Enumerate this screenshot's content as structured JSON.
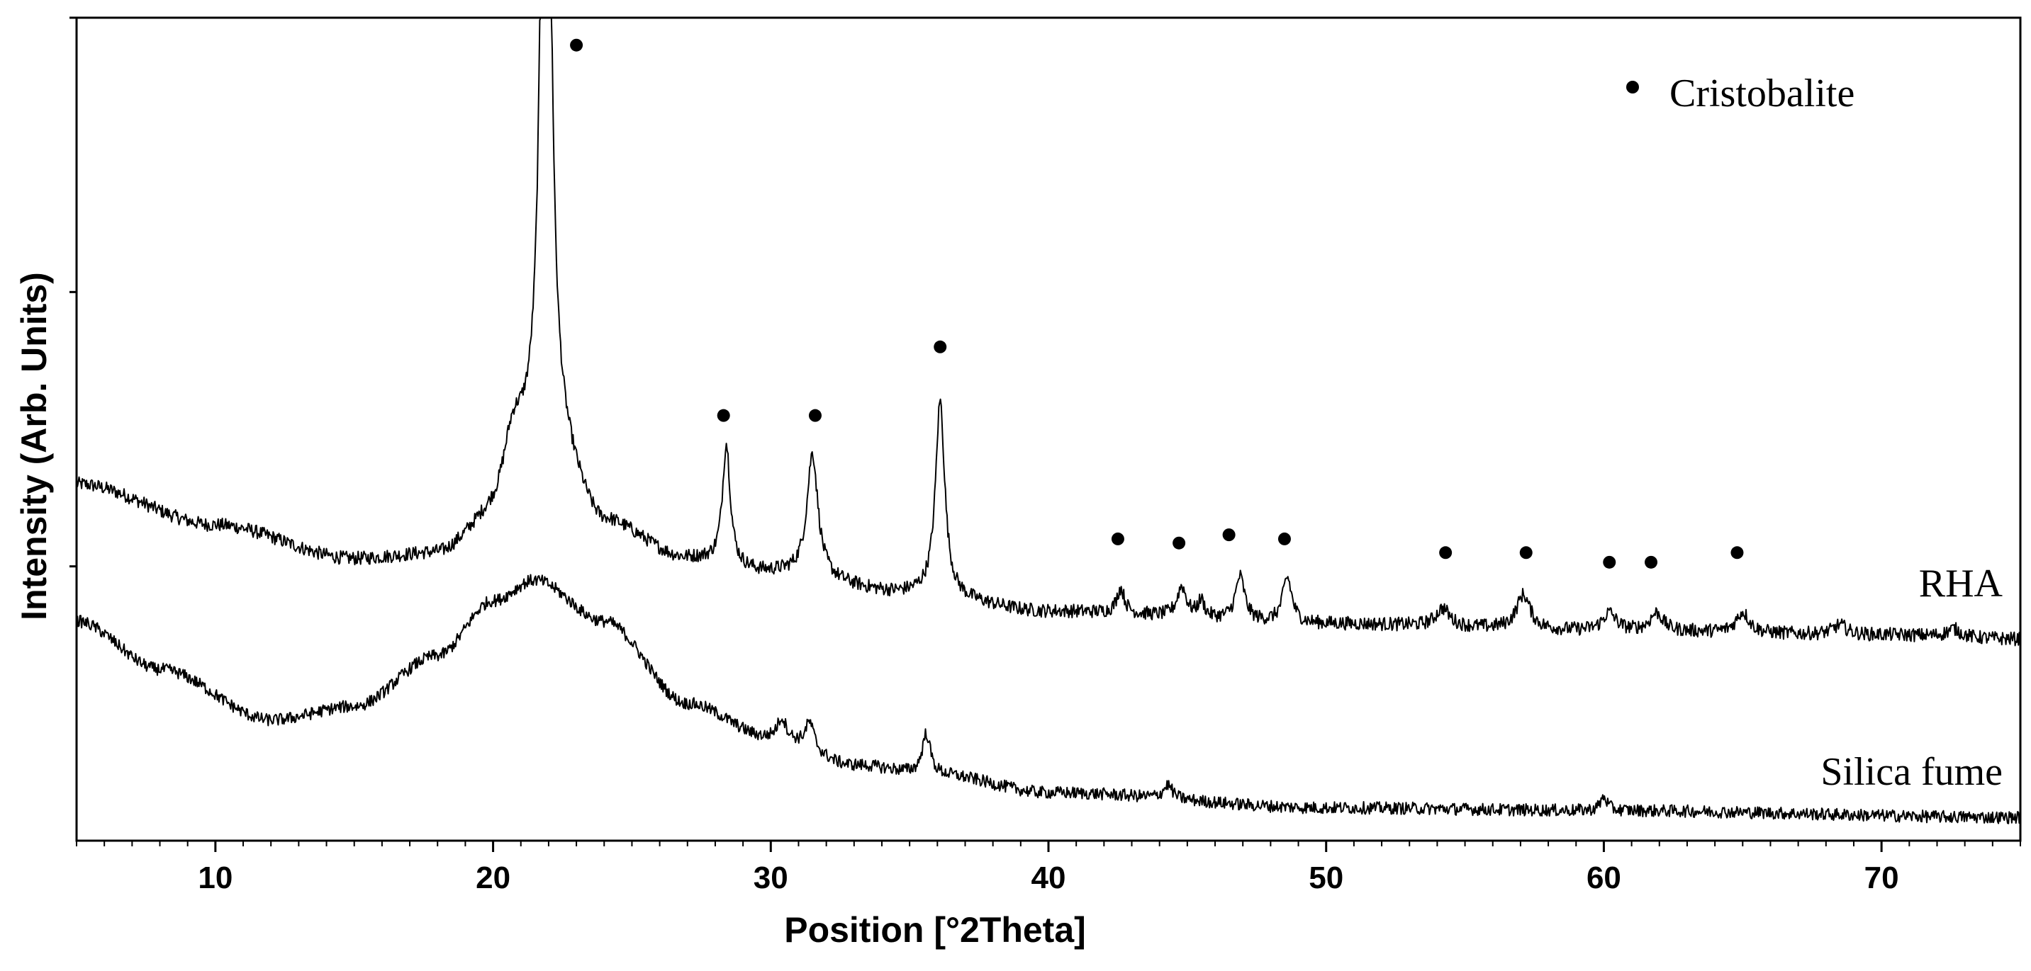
{
  "chart_data": {
    "type": "line",
    "xlabel": "Position [°2Theta]",
    "ylabel": "Intensity (Arb. Units)",
    "xlim": [
      5,
      75
    ],
    "x_ticks": [
      10,
      20,
      30,
      40,
      50,
      60,
      70
    ],
    "y_ticks_labeled": false,
    "ylim": [
      0,
      6
    ],
    "grid": false,
    "series": [
      {
        "name": "RHA",
        "baseline": [
          [
            5,
            2.6
          ],
          [
            10,
            2.3
          ],
          [
            15,
            2.05
          ],
          [
            18,
            2.08
          ],
          [
            20,
            2.3
          ],
          [
            22,
            2.9
          ],
          [
            24,
            2.3
          ],
          [
            27,
            2.05
          ],
          [
            30,
            1.95
          ],
          [
            35,
            1.8
          ],
          [
            40,
            1.67
          ],
          [
            50,
            1.58
          ],
          [
            60,
            1.53
          ],
          [
            70,
            1.5
          ],
          [
            75,
            1.47
          ]
        ],
        "peaks": [
          {
            "x": 20.7,
            "h": 0.5,
            "w": 0.5
          },
          {
            "x": 21.9,
            "h": 8.0,
            "w": 0.17
          },
          {
            "x": 28.4,
            "h": 0.88,
            "w": 0.17
          },
          {
            "x": 31.5,
            "h": 0.9,
            "w": 0.24
          },
          {
            "x": 36.1,
            "h": 1.42,
            "w": 0.2
          },
          {
            "x": 42.6,
            "h": 0.18,
            "w": 0.17
          },
          {
            "x": 44.8,
            "h": 0.22,
            "w": 0.2
          },
          {
            "x": 45.5,
            "h": 0.12,
            "w": 0.15
          },
          {
            "x": 46.9,
            "h": 0.32,
            "w": 0.2
          },
          {
            "x": 48.6,
            "h": 0.33,
            "w": 0.2
          },
          {
            "x": 54.2,
            "h": 0.13,
            "w": 0.3
          },
          {
            "x": 57.1,
            "h": 0.25,
            "w": 0.3
          },
          {
            "x": 60.2,
            "h": 0.13,
            "w": 0.28
          },
          {
            "x": 61.9,
            "h": 0.13,
            "w": 0.28
          },
          {
            "x": 65.0,
            "h": 0.15,
            "w": 0.28
          },
          {
            "x": 68.5,
            "h": 0.07,
            "w": 0.3
          },
          {
            "x": 72.6,
            "h": 0.06,
            "w": 0.3
          }
        ],
        "noise": 0.05
      },
      {
        "name": "Silica fume",
        "baseline": [
          [
            5,
            1.6
          ],
          [
            8,
            1.25
          ],
          [
            12,
            0.88
          ],
          [
            15,
            0.98
          ],
          [
            18,
            1.35
          ],
          [
            20,
            1.75
          ],
          [
            21.5,
            1.9
          ],
          [
            24,
            1.6
          ],
          [
            27,
            1.0
          ],
          [
            30,
            0.75
          ],
          [
            33,
            0.55
          ],
          [
            36,
            0.48
          ],
          [
            40,
            0.35
          ],
          [
            50,
            0.24
          ],
          [
            60,
            0.22
          ],
          [
            75,
            0.17
          ]
        ],
        "peaks": [
          {
            "x": 30.4,
            "h": 0.15,
            "w": 0.2
          },
          {
            "x": 31.4,
            "h": 0.2,
            "w": 0.2
          },
          {
            "x": 35.6,
            "h": 0.3,
            "w": 0.18
          },
          {
            "x": 44.3,
            "h": 0.1,
            "w": 0.2
          },
          {
            "x": 60.0,
            "h": 0.1,
            "w": 0.15
          }
        ],
        "noise": 0.045
      }
    ],
    "markers": {
      "symbol": "●",
      "label": "Cristobalite",
      "points": [
        [
          23.0,
          5.8
        ],
        [
          28.3,
          3.1
        ],
        [
          31.6,
          3.1
        ],
        [
          36.1,
          3.6
        ],
        [
          42.5,
          2.2
        ],
        [
          44.7,
          2.17
        ],
        [
          46.5,
          2.23
        ],
        [
          48.5,
          2.2
        ],
        [
          54.3,
          2.1
        ],
        [
          57.2,
          2.1
        ],
        [
          60.2,
          2.03
        ],
        [
          61.7,
          2.03
        ],
        [
          64.8,
          2.1
        ]
      ]
    },
    "legend": {
      "position": "top-right",
      "entries": [
        "Cristobalite"
      ]
    },
    "annotations": [
      "RHA",
      "Silica fume"
    ]
  }
}
